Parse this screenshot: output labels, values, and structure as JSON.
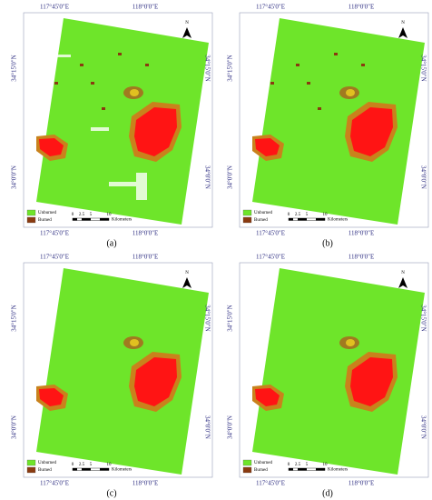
{
  "panels": [
    {
      "label": "(a)",
      "top_labels": [
        "117°45'0\"E",
        "118°0'0\"E"
      ],
      "bottom_labels": [
        "117°45'0\"E",
        "118°0'0\"E"
      ],
      "left_labels": [
        "34°15'0\"N",
        "34°0'0\"N"
      ],
      "right_labels": [
        "34°15'0\"N",
        "34°0'0\"N"
      ],
      "north": "N",
      "legend": [
        "Unburned",
        "Burned"
      ],
      "scale": {
        "ticks": [
          0,
          2.5,
          5,
          10
        ],
        "unit": "Kilometers"
      }
    },
    {
      "label": "(b)",
      "top_labels": [
        "117°45'0\"E",
        "118°0'0\"E"
      ],
      "bottom_labels": [
        "117°45'0\"E",
        "118°0'0\"E"
      ],
      "left_labels": [
        "34°15'0\"N",
        "34°0'0\"N"
      ],
      "right_labels": [
        "34°15'0\"N",
        "34°0'0\"N"
      ],
      "north": "N",
      "legend": [
        "Unburned",
        "Burned"
      ],
      "scale": {
        "ticks": [
          0,
          2.5,
          5,
          10
        ],
        "unit": "Kilometers"
      }
    },
    {
      "label": "(c)",
      "top_labels": [
        "117°45'0\"E",
        "118°0'0\"E"
      ],
      "bottom_labels": [
        "117°45'0\"E",
        "118°0'0\"E"
      ],
      "left_labels": [
        "34°15'0\"N",
        "34°0'0\"N"
      ],
      "right_labels": [
        "34°15'0\"N",
        "34°0'0\"N"
      ],
      "north": "N",
      "legend": [
        "Unburned",
        "Burned"
      ],
      "scale": {
        "ticks": [
          0,
          2.5,
          5,
          10
        ],
        "unit": "Kilometers"
      }
    },
    {
      "label": "(d)",
      "top_labels": [
        "117°45'0\"E",
        "118°0'0\"E"
      ],
      "bottom_labels": [
        "117°45'0\"E",
        "118°0'0\"E"
      ],
      "left_labels": [
        "34°15'0\"N",
        "34°0'0\"N"
      ],
      "right_labels": [
        "34°15'0\"N",
        "34°0'0\"N"
      ],
      "north": "N",
      "legend": [
        "Unburned",
        "Burned"
      ],
      "scale": {
        "ticks": [
          0,
          2.5,
          5,
          10
        ],
        "unit": "Kilometers"
      }
    }
  ]
}
